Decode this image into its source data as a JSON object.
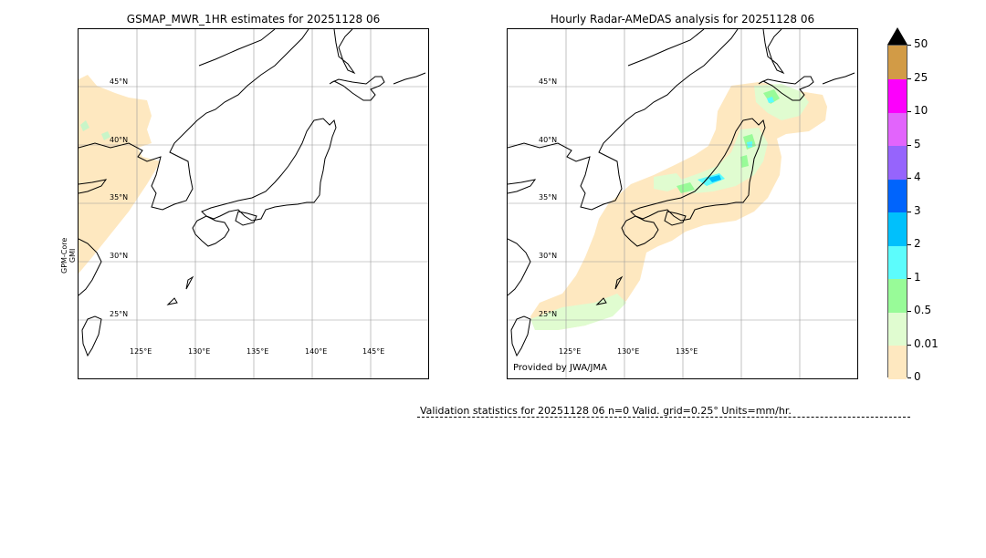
{
  "left_panel": {
    "title": "GSMAP_MWR_1HR estimates for 20251128 06",
    "side_label_line1": "GPM-Core",
    "side_label_line2": "GMI",
    "lat_labels": [
      "45°N",
      "40°N",
      "35°N",
      "30°N",
      "25°N"
    ],
    "lon_labels": [
      "125°E",
      "130°E",
      "135°E",
      "140°E",
      "145°E"
    ]
  },
  "right_panel": {
    "title": "Hourly Radar-AMeDAS analysis for 20251128 06",
    "lat_labels": [
      "45°N",
      "40°N",
      "35°N",
      "30°N",
      "25°N"
    ],
    "lon_labels": [
      "125°E",
      "130°E",
      "135°E"
    ],
    "credit": "Provided by JWA/JMA"
  },
  "colorbar": {
    "units": "mm/hr",
    "ticks": [
      "0",
      "0.01",
      "0.5",
      "1",
      "2",
      "3",
      "4",
      "5",
      "10",
      "25",
      "50"
    ],
    "colors": [
      "#fee8c0",
      "#e0fcd0",
      "#98fb98",
      "#5cfcfc",
      "#00c0fc",
      "#0064fc",
      "#9664fc",
      "#e264fc",
      "#fc00fc",
      "#d29b46"
    ],
    "extend_color": "#000000"
  },
  "validation": {
    "text": "Validation statistics for 20251128 06  n=0 Valid. grid=0.25° Units=mm/hr."
  }
}
